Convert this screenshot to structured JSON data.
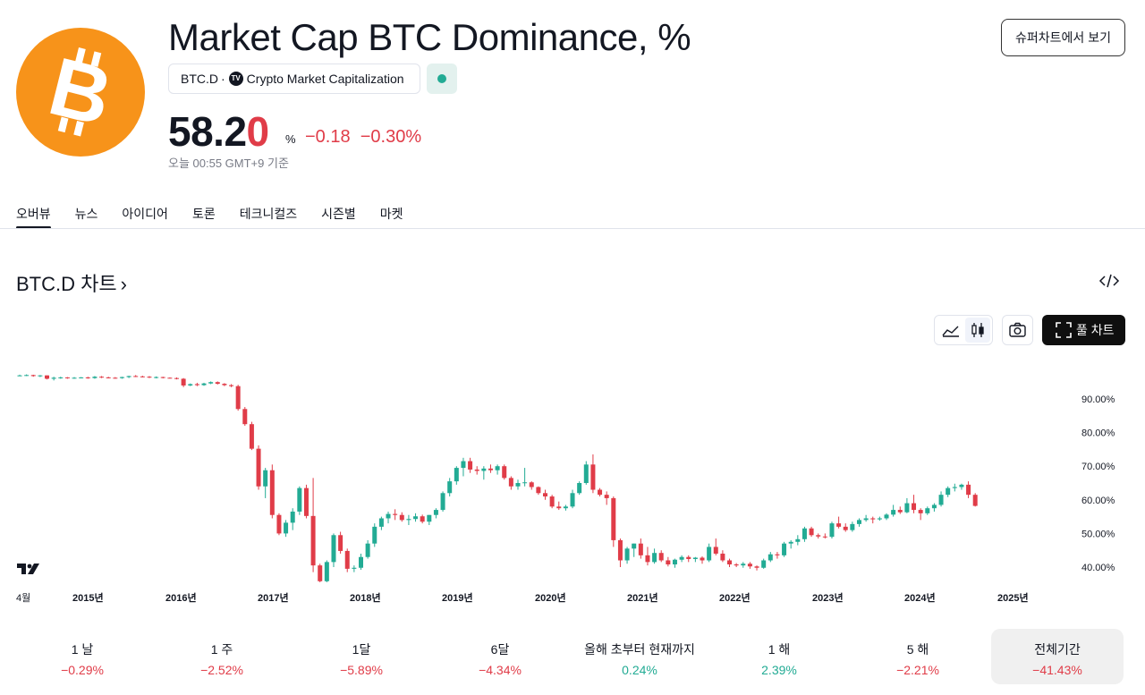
{
  "header": {
    "title": "Market Cap BTC Dominance, %",
    "symbol": "BTC.D",
    "separator": "·",
    "source": "Crypto Market Capitalization",
    "tv_badge": "TV",
    "super_chart_label": "슈퍼차트에서 보기",
    "logo_icon": "bitcoin-logo-icon",
    "status_color": "#22ab94"
  },
  "price": {
    "main": "58.2",
    "last_digit": "0",
    "unit": "%",
    "change": "−0.18  −0.30%",
    "time": "오늘 00:55 GMT+9 기준"
  },
  "tabs": [
    {
      "label": "오버뷰",
      "active": true
    },
    {
      "label": "뉴스"
    },
    {
      "label": "아이디어"
    },
    {
      "label": "토론"
    },
    {
      "label": "테크니컬즈"
    },
    {
      "label": "시즌별"
    },
    {
      "label": "마켓"
    }
  ],
  "section": {
    "title": "BTC.D 차트",
    "chevron": "›"
  },
  "toolbar": {
    "full_chart_label": "풀 차트"
  },
  "colors": {
    "up": "#22ab94",
    "down": "#e03c48",
    "accent": "#f7931a"
  },
  "chart_data": {
    "type": "candlestick",
    "x_labels": [
      "4월",
      "2015년",
      "2016년",
      "2017년",
      "2018년",
      "2019년",
      "2020년",
      "2021년",
      "2022년",
      "2023년",
      "2024년",
      "2025년"
    ],
    "y_ticks": [
      "40.00%",
      "50.00%",
      "60.00%",
      "70.00%",
      "80.00%",
      "90.00%"
    ],
    "ylim": [
      36,
      98
    ],
    "period": "monthly",
    "candles": [
      [
        97,
        97.2,
        96.8,
        97
      ],
      [
        97,
        97.3,
        96.8,
        97.1
      ],
      [
        97.1,
        97.2,
        96.6,
        96.8
      ],
      [
        96.8,
        97.1,
        96.5,
        97
      ],
      [
        97,
        97,
        95.8,
        96
      ],
      [
        96,
        96.6,
        95.5,
        96.3
      ],
      [
        96.3,
        96.6,
        96,
        96.4
      ],
      [
        96.4,
        96.5,
        96,
        96.3
      ],
      [
        96.3,
        96.5,
        96,
        96.3
      ],
      [
        96.3,
        96.5,
        96.1,
        96.4
      ],
      [
        96.4,
        96.6,
        96,
        96.2
      ],
      [
        96.2,
        96.8,
        96,
        96.6
      ],
      [
        96.6,
        96.8,
        96.2,
        96.4
      ],
      [
        96.4,
        96.6,
        96.1,
        96.3
      ],
      [
        96.3,
        96.5,
        96,
        96.2
      ],
      [
        96.2,
        96.6,
        96,
        96.5
      ],
      [
        96.5,
        96.9,
        96.2,
        96.8
      ],
      [
        96.8,
        97.1,
        96.5,
        96.7
      ],
      [
        96.7,
        96.9,
        96.4,
        96.6
      ],
      [
        96.6,
        96.8,
        96.2,
        96.4
      ],
      [
        96.4,
        96.7,
        96.1,
        96.5
      ],
      [
        96.5,
        96.6,
        96.1,
        96.3
      ],
      [
        96.3,
        96.4,
        96.1,
        96.2
      ],
      [
        96.2,
        96.4,
        95.8,
        96
      ],
      [
        96,
        96.2,
        93.5,
        94
      ],
      [
        94,
        94.6,
        93.8,
        94.4
      ],
      [
        94.4,
        94.8,
        93.8,
        94.1
      ],
      [
        94.1,
        94.8,
        93.9,
        94.6
      ],
      [
        94.6,
        95.2,
        94.4,
        95
      ],
      [
        95,
        95.2,
        94.3,
        94.5
      ],
      [
        94.5,
        94.7,
        93.8,
        94.1
      ],
      [
        94.1,
        94.4,
        93.5,
        93.8
      ],
      [
        93.8,
        94.2,
        86.5,
        87
      ],
      [
        87,
        87.6,
        82,
        82.5
      ],
      [
        82.5,
        83.2,
        74.8,
        75.2
      ],
      [
        75.2,
        76.2,
        63,
        64
      ],
      [
        64,
        69.5,
        60.5,
        68.8
      ],
      [
        68.8,
        70.5,
        54.5,
        55.5
      ],
      [
        55.5,
        56,
        49.5,
        50
      ],
      [
        50,
        54,
        49,
        53.2
      ],
      [
        53.2,
        57.5,
        51,
        56.5
      ],
      [
        56.5,
        64,
        55.5,
        63.5
      ],
      [
        63.5,
        64.5,
        54.5,
        55.2
      ],
      [
        55.2,
        66.5,
        38.5,
        40.5
      ],
      [
        40.5,
        41,
        35.5,
        35.8
      ],
      [
        35.8,
        42,
        35.5,
        41.5
      ],
      [
        41.5,
        50,
        40,
        49.5
      ],
      [
        49.5,
        50.5,
        44,
        44.8
      ],
      [
        44.8,
        45.5,
        38.5,
        39.5
      ],
      [
        39.5,
        40.5,
        38.5,
        39.8
      ],
      [
        39.8,
        44,
        39.2,
        43
      ],
      [
        43,
        48,
        42.5,
        47
      ],
      [
        47,
        53,
        46,
        52
      ],
      [
        52,
        55,
        51,
        54.5
      ],
      [
        54.5,
        56.5,
        53,
        55.8
      ],
      [
        55.8,
        57.2,
        54,
        55.5
      ],
      [
        55.5,
        56.3,
        53.5,
        54
      ],
      [
        54,
        55.5,
        52.5,
        54.3
      ],
      [
        54.3,
        56,
        53.5,
        55.1
      ],
      [
        55.1,
        55.6,
        53,
        53.5
      ],
      [
        53.5,
        55.5,
        52.5,
        55.5
      ],
      [
        55.5,
        57.5,
        54.5,
        57
      ],
      [
        57,
        62.5,
        56.5,
        62
      ],
      [
        62,
        66.5,
        61,
        65.5
      ],
      [
        65.5,
        70,
        64.5,
        69.5
      ],
      [
        69.5,
        72.5,
        67,
        71.5
      ],
      [
        71.5,
        72.5,
        68,
        69
      ],
      [
        69,
        70,
        67.5,
        68.6
      ],
      [
        68.6,
        70,
        66,
        69.3
      ],
      [
        69.3,
        70.5,
        68,
        68.8
      ],
      [
        68.8,
        70.5,
        67.5,
        70
      ],
      [
        70,
        70.5,
        66,
        66.5
      ],
      [
        66.5,
        67,
        63,
        64
      ],
      [
        64,
        66,
        63,
        65
      ],
      [
        65,
        69.5,
        64,
        65.2
      ],
      [
        65.2,
        65.5,
        63,
        63.8
      ],
      [
        63.8,
        64,
        61.5,
        62
      ],
      [
        62,
        63,
        60,
        61
      ],
      [
        61,
        61.5,
        57.5,
        58
      ],
      [
        58,
        59.5,
        57,
        57.5
      ],
      [
        57.5,
        58.5,
        56.8,
        58
      ],
      [
        58,
        63,
        57.5,
        62
      ],
      [
        62,
        65.5,
        61.5,
        65
      ],
      [
        65,
        71.5,
        64.5,
        70.5
      ],
      [
        70.5,
        73.5,
        62,
        63
      ],
      [
        63,
        63.5,
        61,
        61.5
      ],
      [
        61.5,
        62.5,
        58.5,
        60.5
      ],
      [
        60.5,
        61,
        46,
        48
      ],
      [
        48,
        48.5,
        40,
        42
      ],
      [
        42,
        46,
        41,
        45.5
      ],
      [
        45.5,
        47,
        43,
        47
      ],
      [
        47,
        48.5,
        42.5,
        43.5
      ],
      [
        43.5,
        46,
        40.5,
        41.5
      ],
      [
        41.5,
        45.5,
        41,
        44.2
      ],
      [
        44.2,
        45,
        41.5,
        42
      ],
      [
        42,
        43,
        40.2,
        40.8
      ],
      [
        40.8,
        42.5,
        39.8,
        42.2
      ],
      [
        42.2,
        43.5,
        41.5,
        43
      ],
      [
        43,
        43.5,
        41.5,
        42.4
      ],
      [
        42.4,
        43,
        41.5,
        42.8
      ],
      [
        42.8,
        43.2,
        41,
        42
      ],
      [
        42,
        47,
        41.5,
        46
      ],
      [
        46,
        48.5,
        43.5,
        44
      ],
      [
        44,
        45,
        41.5,
        42
      ],
      [
        42,
        42.5,
        40,
        40.8
      ],
      [
        40.8,
        41.2,
        40,
        40.5
      ],
      [
        40.5,
        41.5,
        39.8,
        41
      ],
      [
        41,
        41.5,
        39.5,
        40.2
      ],
      [
        40.2,
        40.5,
        39,
        39.8
      ],
      [
        39.8,
        42.5,
        39.5,
        42
      ],
      [
        42,
        44.5,
        41.5,
        43.8
      ],
      [
        43.8,
        44.5,
        42.5,
        43.5
      ],
      [
        43.5,
        47.5,
        43,
        47
      ],
      [
        47,
        48,
        45.5,
        47.5
      ],
      [
        47.5,
        49.5,
        46.5,
        48.3
      ],
      [
        48.3,
        52,
        47.5,
        51.5
      ],
      [
        51.5,
        52,
        49,
        49.5
      ],
      [
        49.5,
        50,
        48.5,
        49.1
      ],
      [
        49.1,
        50,
        48.5,
        49
      ],
      [
        49,
        53.5,
        48.5,
        53
      ],
      [
        53,
        55,
        51.5,
        52
      ],
      [
        52,
        53,
        50.5,
        51
      ],
      [
        51,
        53.5,
        50.5,
        52.8
      ],
      [
        52.8,
        54.5,
        52,
        54
      ],
      [
        54,
        55.5,
        53.5,
        54.5
      ],
      [
        54.5,
        55,
        53,
        54.2
      ],
      [
        54.2,
        55,
        53.8,
        54.5
      ],
      [
        54.5,
        56,
        54,
        55.6
      ],
      [
        55.6,
        58.5,
        55,
        57
      ],
      [
        57,
        58,
        55.8,
        56.3
      ],
      [
        56.3,
        60.5,
        56,
        59
      ],
      [
        59,
        61.5,
        56,
        57
      ],
      [
        57,
        57.5,
        54,
        56
      ],
      [
        56,
        58,
        55.5,
        57.5
      ],
      [
        57.5,
        59,
        56.5,
        58.5
      ],
      [
        58.5,
        62.5,
        58,
        61.5
      ],
      [
        61.5,
        64,
        60.8,
        63.5
      ],
      [
        63.5,
        64.8,
        62.5,
        63.8
      ],
      [
        63.8,
        64.8,
        63,
        64.5
      ],
      [
        64.5,
        65.5,
        60.5,
        61.5
      ],
      [
        61.5,
        62,
        58,
        58.2
      ]
    ]
  },
  "periods": [
    {
      "label": "1 날",
      "value": "−0.29%",
      "dir": "neg"
    },
    {
      "label": "1 주",
      "value": "−2.52%",
      "dir": "neg"
    },
    {
      "label": "1달",
      "value": "−5.89%",
      "dir": "neg"
    },
    {
      "label": "6달",
      "value": "−4.34%",
      "dir": "neg"
    },
    {
      "label": "올해 초부터 현재까지",
      "value": "0.24%",
      "dir": "pos"
    },
    {
      "label": "1 해",
      "value": "2.39%",
      "dir": "pos"
    },
    {
      "label": "5 해",
      "value": "−2.21%",
      "dir": "neg"
    },
    {
      "label": "전체기간",
      "value": "−41.43%",
      "dir": "neg",
      "active": true
    }
  ]
}
